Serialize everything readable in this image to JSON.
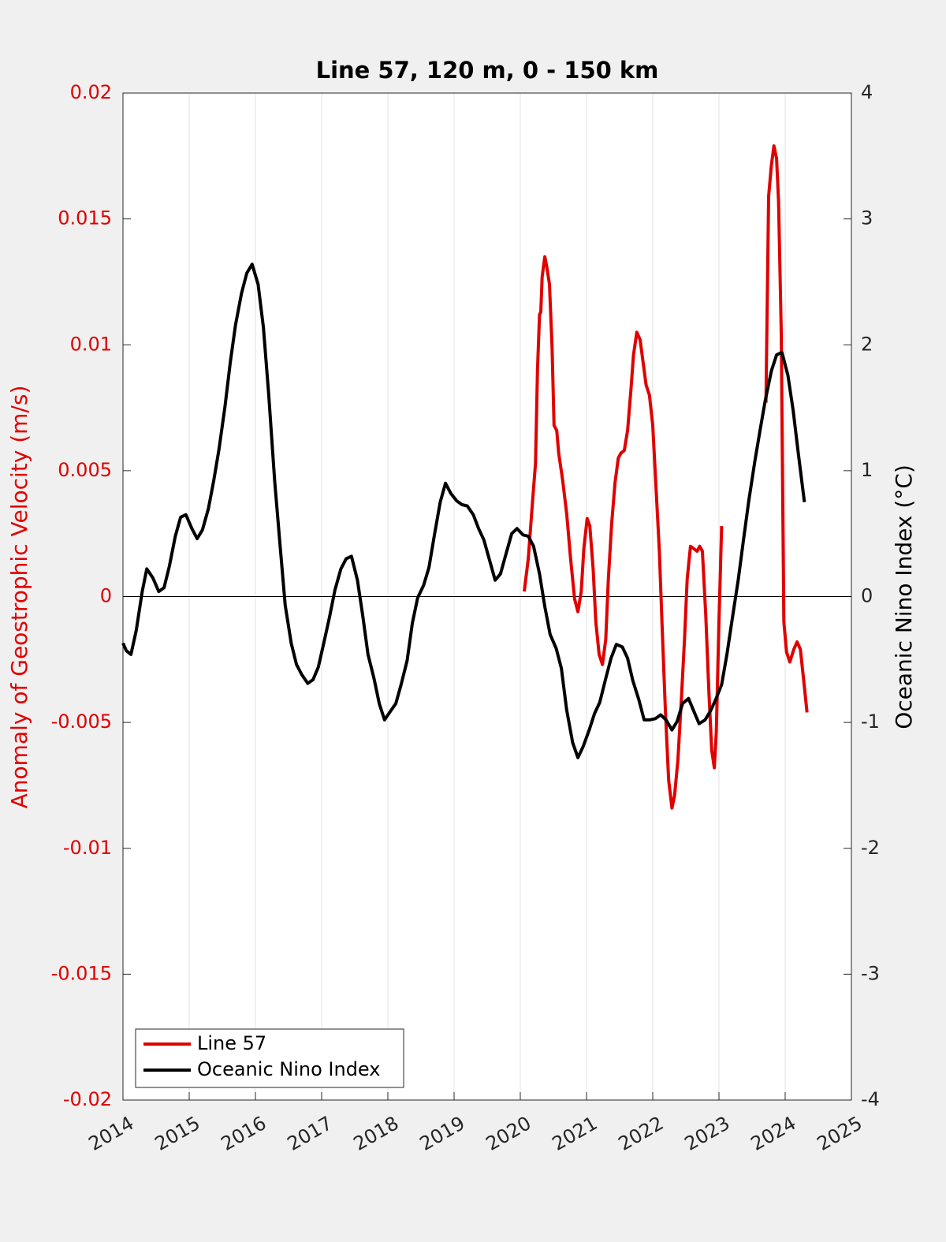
{
  "chart_data": {
    "type": "line",
    "title": "Line 57, 120 m, 0 - 150 km",
    "ylabel": "Anomaly of Geostrophic Velocity (m/s)",
    "y2label": "Oceanic Nino Index (°C)",
    "xlim": [
      2014,
      2025
    ],
    "xticks": [
      2014,
      2015,
      2016,
      2017,
      2018,
      2019,
      2020,
      2021,
      2022,
      2023,
      2024,
      2025
    ],
    "ylim": [
      -0.02,
      0.02
    ],
    "yticks": [
      -0.02,
      -0.015,
      -0.01,
      -0.005,
      0,
      0.005,
      0.01,
      0.015,
      0.02
    ],
    "y2lim": [
      -4,
      4
    ],
    "y2ticks": [
      -4,
      -3,
      -2,
      -1,
      0,
      1,
      2,
      3,
      4
    ],
    "hline": 0,
    "grid": "x",
    "legend": "lower left",
    "ylabel_color": "#e00000",
    "series": [
      {
        "name": "Line 57",
        "color": "#e00000",
        "x": [
          2020.06,
          2020.12,
          2020.18,
          2020.23,
          2020.26,
          2020.29,
          2020.31,
          2020.33,
          2020.37,
          2020.4,
          2020.44,
          2020.48,
          2020.51,
          2020.55,
          2020.58,
          2020.64,
          2020.7,
          2020.76,
          2020.82,
          2020.87,
          2020.92,
          2020.96,
          2021.01,
          2021.05,
          2021.1,
          2021.14,
          2021.19,
          2021.24,
          2021.29,
          2021.33,
          2021.38,
          2021.43,
          2021.48,
          2021.52,
          2021.57,
          2021.62,
          2021.67,
          2021.71,
          2021.76,
          2021.81,
          2021.86,
          2021.9,
          2021.95,
          2022.0,
          2022.05,
          2022.1,
          2022.14,
          2022.19,
          2022.24,
          2022.29,
          2022.33,
          2022.38,
          2022.43,
          2022.48,
          2022.52,
          2022.57,
          2022.62,
          2022.67,
          2022.71,
          2022.75,
          2022.8,
          2022.85,
          2022.89,
          2022.93,
          2022.96,
          2023.0,
          2023.04,
          null,
          2023.71,
          2023.75,
          2023.79,
          2023.83,
          2023.87,
          2023.9,
          2023.94,
          2023.98,
          2024.02,
          2024.07,
          2024.13,
          2024.18,
          2024.23,
          2024.29,
          2024.33
        ],
        "values": [
          0.0002,
          0.0015,
          0.0036,
          0.0053,
          0.009,
          0.0112,
          0.0113,
          0.0127,
          0.0135,
          0.0131,
          0.0124,
          0.0099,
          0.0068,
          0.0066,
          0.0057,
          0.0046,
          0.0033,
          0.0015,
          -0.0001,
          -0.0006,
          0.0002,
          0.0019,
          0.0031,
          0.0028,
          0.0011,
          -0.001,
          -0.0023,
          -0.0027,
          -0.0017,
          0.0007,
          0.0029,
          0.0045,
          0.0055,
          0.0057,
          0.0058,
          0.0066,
          0.0082,
          0.0096,
          0.0105,
          0.0102,
          0.0092,
          0.0084,
          0.008,
          0.0068,
          0.0043,
          0.0018,
          -0.0011,
          -0.0045,
          -0.0073,
          -0.0084,
          -0.0079,
          -0.0065,
          -0.0042,
          -0.0017,
          0.0007,
          0.002,
          0.0019,
          0.0018,
          0.002,
          0.0018,
          -0.0007,
          -0.0039,
          -0.0061,
          -0.0068,
          -0.0054,
          -0.001,
          0.0028,
          null,
          0.0077,
          0.0159,
          0.0171,
          0.0179,
          0.0174,
          0.0157,
          0.0105,
          -0.001,
          -0.0022,
          -0.0026,
          -0.0021,
          -0.0018,
          -0.0021,
          -0.0036,
          -0.0046
        ]
      },
      {
        "name": "Oceanic Nino Index",
        "color": "#000000",
        "axis": "y2",
        "x": [
          2014.0,
          2014.05,
          2014.12,
          2014.2,
          2014.29,
          2014.36,
          2014.45,
          2014.54,
          2014.62,
          2014.7,
          2014.79,
          2014.87,
          2014.95,
          2015.04,
          2015.12,
          2015.2,
          2015.29,
          2015.37,
          2015.45,
          2015.54,
          2015.62,
          2015.7,
          2015.79,
          2015.87,
          2015.95,
          2016.04,
          2016.12,
          2016.2,
          2016.29,
          2016.37,
          2016.45,
          2016.54,
          2016.62,
          2016.7,
          2016.79,
          2016.87,
          2016.95,
          2017.04,
          2017.12,
          2017.2,
          2017.29,
          2017.37,
          2017.45,
          2017.54,
          2017.62,
          2017.7,
          2017.79,
          2017.87,
          2017.95,
          2018.04,
          2018.12,
          2018.2,
          2018.29,
          2018.37,
          2018.45,
          2018.54,
          2018.62,
          2018.7,
          2018.79,
          2018.87,
          2018.95,
          2019.04,
          2019.12,
          2019.2,
          2019.29,
          2019.37,
          2019.45,
          2019.54,
          2019.62,
          2019.7,
          2019.79,
          2019.87,
          2019.95,
          2020.04,
          2020.12,
          2020.2,
          2020.29,
          2020.37,
          2020.45,
          2020.54,
          2020.62,
          2020.7,
          2020.79,
          2020.87,
          2020.95,
          2021.04,
          2021.12,
          2021.2,
          2021.29,
          2021.37,
          2021.45,
          2021.54,
          2021.62,
          2021.7,
          2021.79,
          2021.87,
          2021.95,
          2022.04,
          2022.12,
          2022.2,
          2022.29,
          2022.37,
          2022.45,
          2022.54,
          2022.62,
          2022.7,
          2022.79,
          2022.87,
          2022.95,
          2023.04,
          2023.12,
          2023.2,
          2023.29,
          2023.37,
          2023.45,
          2023.54,
          2023.62,
          2023.7,
          2023.79,
          2023.87,
          2023.95,
          2024.04,
          2024.12,
          2024.2,
          2024.29
        ],
        "values": [
          -0.37,
          -0.43,
          -0.46,
          -0.27,
          0.04,
          0.22,
          0.15,
          0.04,
          0.07,
          0.24,
          0.48,
          0.63,
          0.65,
          0.54,
          0.46,
          0.53,
          0.7,
          0.92,
          1.17,
          1.51,
          1.86,
          2.16,
          2.41,
          2.57,
          2.64,
          2.48,
          2.14,
          1.61,
          0.92,
          0.42,
          -0.07,
          -0.37,
          -0.54,
          -0.62,
          -0.69,
          -0.66,
          -0.56,
          -0.35,
          -0.16,
          0.05,
          0.22,
          0.3,
          0.32,
          0.13,
          -0.15,
          -0.46,
          -0.65,
          -0.85,
          -0.98,
          -0.91,
          -0.85,
          -0.7,
          -0.51,
          -0.21,
          -0.01,
          0.09,
          0.23,
          0.48,
          0.75,
          0.9,
          0.82,
          0.76,
          0.73,
          0.72,
          0.65,
          0.54,
          0.45,
          0.28,
          0.13,
          0.18,
          0.35,
          0.5,
          0.54,
          0.49,
          0.48,
          0.4,
          0.18,
          -0.08,
          -0.3,
          -0.41,
          -0.57,
          -0.9,
          -1.16,
          -1.28,
          -1.19,
          -1.06,
          -0.93,
          -0.84,
          -0.65,
          -0.49,
          -0.38,
          -0.4,
          -0.49,
          -0.67,
          -0.82,
          -0.98,
          -0.98,
          -0.97,
          -0.94,
          -0.98,
          -1.06,
          -0.99,
          -0.85,
          -0.81,
          -0.91,
          -1.01,
          -0.98,
          -0.91,
          -0.82,
          -0.7,
          -0.46,
          -0.18,
          0.13,
          0.45,
          0.76,
          1.07,
          1.32,
          1.56,
          1.79,
          1.92,
          1.94,
          1.76,
          1.48,
          1.13,
          0.75
        ]
      }
    ]
  }
}
